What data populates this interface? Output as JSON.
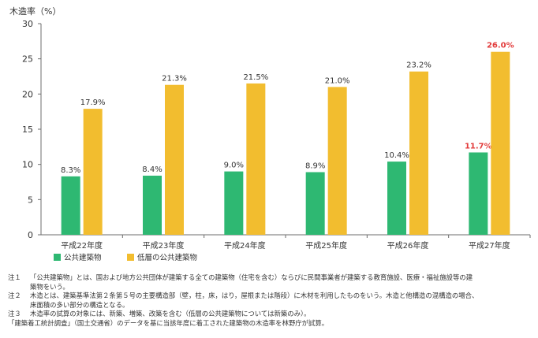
{
  "chart_data": {
    "type": "bar",
    "y_axis_label": "木造率（%）",
    "categories": [
      "平成22年度",
      "平成23年度",
      "平成24年度",
      "平成25年度",
      "平成26年度",
      "平成27年度"
    ],
    "ylim": [
      0,
      30
    ],
    "y_ticks": [
      0,
      5,
      10,
      15,
      20,
      25,
      30
    ],
    "grid": false,
    "legend_position": "bottom-left",
    "series": [
      {
        "name": "公共建築物",
        "color": "#2eb872",
        "values": [
          8.3,
          8.4,
          9.0,
          8.9,
          10.4,
          11.7
        ],
        "labels": [
          "8.3%",
          "8.4%",
          "9.0%",
          "8.9%",
          "10.4%",
          "11.7%"
        ]
      },
      {
        "name": "低層の公共建築物",
        "color": "#f2bd2f",
        "values": [
          17.9,
          21.3,
          21.5,
          21.0,
          23.2,
          26.0
        ],
        "labels": [
          "17.9%",
          "21.3%",
          "21.5%",
          "21.0%",
          "23.2%",
          "26.0%"
        ]
      }
    ],
    "highlight_label_color": "#e23b3b",
    "highlight_category_index": 5
  },
  "notes": {
    "note1_id": "注１",
    "note1_line1": "「公共建築物」とは、国および地方公共団体が建築する全ての建築物（住宅を含む）ならびに民間事業者が建築する教育施設、医療・福祉施設等の建",
    "note1_line2": "築物をいう。",
    "note2_id": "注２",
    "note2_line1": "木造とは、建築基準法第２条第５号の主要構造部（壁，柱，床，はり，屋根または階段）に木材を利用したものをいう。木造と他構造の混構造の場合、",
    "note2_line2": "床面積の多い部分の構造となる。",
    "note3_id": "注３",
    "note3_line1": "木造率の試算の対象には、新築、増築、改築を含む（低層の公共建築物については新築のみ）。",
    "source": "「建築着工統計調査」（国土交通省）のデータを基に当該年度に着工された建築物の木造率を林野庁が試算。"
  }
}
